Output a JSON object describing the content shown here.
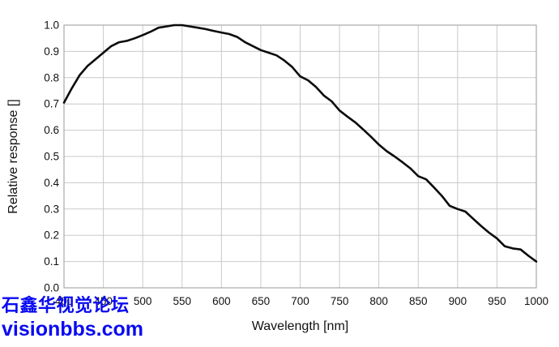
{
  "page": {
    "background": "#ffffff"
  },
  "watermark": {
    "line1": "石鑫华视觉论坛",
    "line2": "visionbbs.com",
    "color": "#0a0af2"
  },
  "chart_data": {
    "type": "line",
    "title": "",
    "xlabel": "Wavelength [nm]",
    "ylabel": "Relative response []",
    "xlim": [
      400,
      1000
    ],
    "ylim": [
      0.0,
      1.0
    ],
    "x_ticks": [
      400,
      450,
      500,
      550,
      600,
      650,
      700,
      750,
      800,
      850,
      900,
      950,
      1000
    ],
    "y_ticks": [
      0.0,
      0.1,
      0.2,
      0.3,
      0.4,
      0.5,
      0.6,
      0.7,
      0.8,
      0.9,
      1.0
    ],
    "grid": true,
    "legend": "none",
    "line_color": "#0b0b0b",
    "grid_color": "#c9c9c9",
    "series": [
      {
        "name": "relative-response",
        "x": [
          400,
          410,
          420,
          430,
          440,
          450,
          460,
          470,
          480,
          490,
          500,
          510,
          520,
          530,
          540,
          550,
          560,
          570,
          580,
          590,
          600,
          610,
          620,
          630,
          640,
          650,
          660,
          670,
          680,
          690,
          700,
          710,
          720,
          730,
          740,
          750,
          760,
          770,
          780,
          790,
          800,
          810,
          820,
          830,
          840,
          850,
          860,
          870,
          880,
          890,
          900,
          910,
          920,
          930,
          940,
          950,
          960,
          970,
          980,
          990,
          1000
        ],
        "y": [
          0.705,
          0.76,
          0.81,
          0.845,
          0.87,
          0.895,
          0.92,
          0.935,
          0.94,
          0.95,
          0.962,
          0.975,
          0.99,
          0.995,
          1.0,
          1.0,
          0.995,
          0.99,
          0.985,
          0.978,
          0.972,
          0.966,
          0.955,
          0.935,
          0.92,
          0.905,
          0.895,
          0.885,
          0.865,
          0.84,
          0.805,
          0.79,
          0.765,
          0.732,
          0.71,
          0.675,
          0.652,
          0.63,
          0.603,
          0.575,
          0.545,
          0.52,
          0.5,
          0.478,
          0.455,
          0.425,
          0.413,
          0.382,
          0.35,
          0.312,
          0.3,
          0.29,
          0.262,
          0.235,
          0.21,
          0.188,
          0.158,
          0.15,
          0.146,
          0.122,
          0.1
        ]
      }
    ]
  }
}
